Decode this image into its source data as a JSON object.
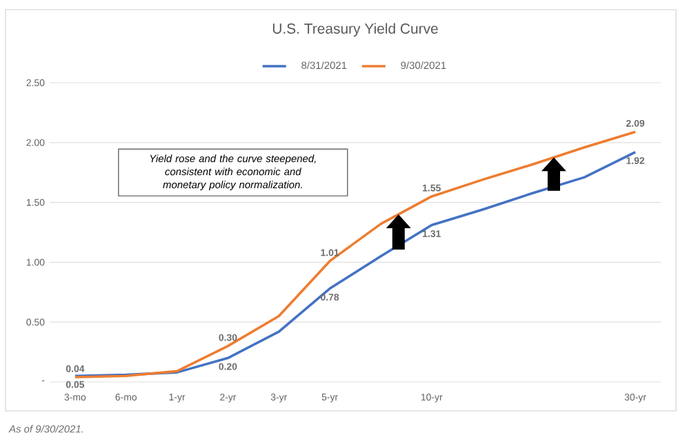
{
  "chart_data": {
    "type": "line",
    "title": "U.S. Treasury Yield Curve",
    "categories": [
      "3-mo",
      "6-mo",
      "1-yr",
      "2-yr",
      "3-yr",
      "5-yr",
      null,
      "10-yr",
      null,
      null,
      null,
      "30-yr"
    ],
    "series": [
      {
        "name": "8/31/2021",
        "color": "#4472c4",
        "values": [
          0.05,
          0.06,
          0.08,
          0.2,
          0.42,
          0.78,
          1.05,
          1.31,
          1.44,
          1.58,
          1.71,
          1.92
        ],
        "value_labels": [
          "0.05",
          null,
          null,
          "0.20",
          null,
          "0.78",
          null,
          "1.31",
          null,
          null,
          null,
          "1.92"
        ]
      },
      {
        "name": "9/30/2021",
        "color": "#ed7d31",
        "values": [
          0.04,
          0.05,
          0.09,
          0.3,
          0.55,
          1.01,
          1.32,
          1.55,
          1.69,
          1.82,
          1.96,
          2.09
        ],
        "value_labels": [
          "0.04",
          null,
          null,
          "0.30",
          null,
          "1.01",
          null,
          "1.55",
          null,
          null,
          null,
          "2.09"
        ]
      }
    ],
    "ylim": [
      0,
      2.5
    ],
    "yticks": [
      {
        "value": 0,
        "label": "-"
      },
      {
        "value": 0.5,
        "label": "0.50"
      },
      {
        "value": 1.0,
        "label": "1.00"
      },
      {
        "value": 1.5,
        "label": "1.50"
      },
      {
        "value": 2.0,
        "label": "2.00"
      },
      {
        "value": 2.5,
        "label": "2.50"
      }
    ],
    "grid": "y",
    "legend": "top",
    "marker": "none",
    "line_style": "solid",
    "annotations": [
      "Yield rose and the curve steepened, consistent with economic and monetary policy normalization.",
      "As of 9/30/2021."
    ]
  }
}
